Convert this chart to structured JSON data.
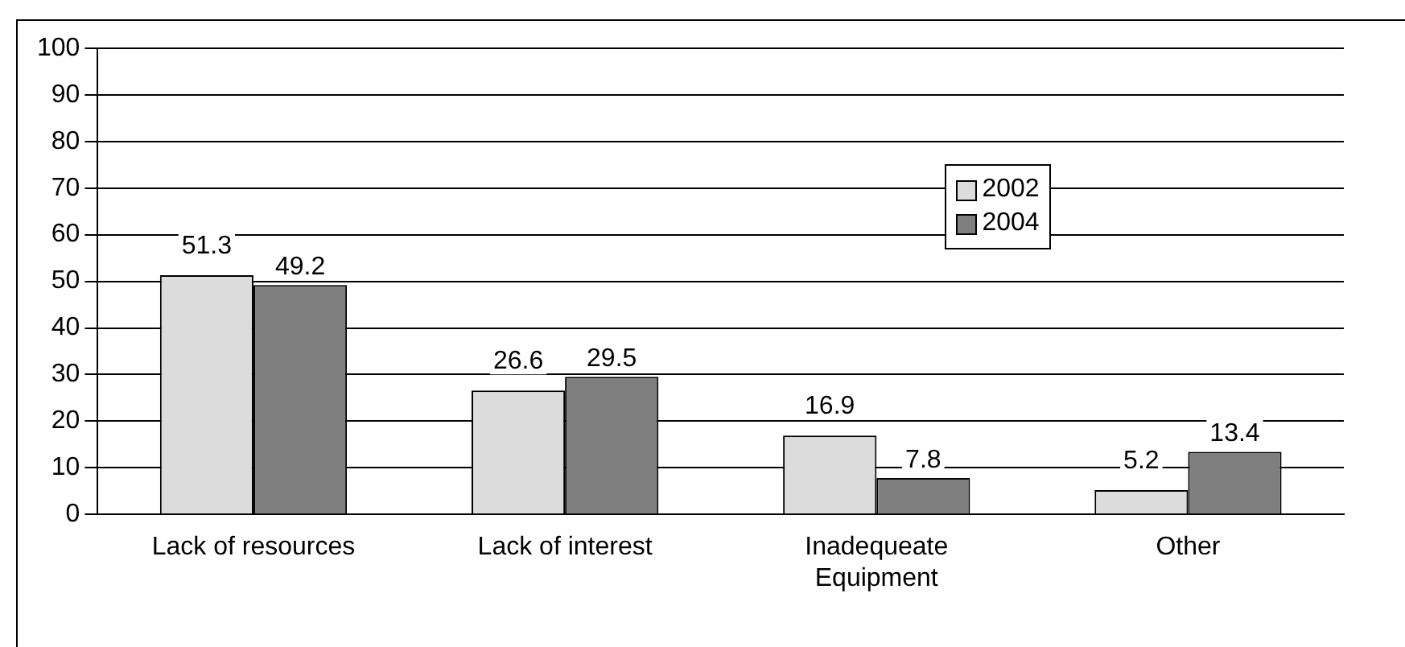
{
  "chart_data": {
    "type": "bar",
    "categories": [
      "Lack of resources",
      "Lack of interest",
      "Inadequeate Equipment",
      "Other"
    ],
    "series": [
      {
        "name": "2002",
        "color": "#dcdcdc",
        "values": [
          51.3,
          26.6,
          16.9,
          5.2
        ]
      },
      {
        "name": "2004",
        "color": "#7f7f7f",
        "values": [
          49.2,
          29.5,
          7.8,
          13.4
        ]
      }
    ],
    "ylim": [
      0,
      100
    ],
    "yticks": [
      0,
      10,
      20,
      30,
      40,
      50,
      60,
      70,
      80,
      90,
      100
    ],
    "grid": "y",
    "legend": "top right",
    "data_labels": true
  }
}
